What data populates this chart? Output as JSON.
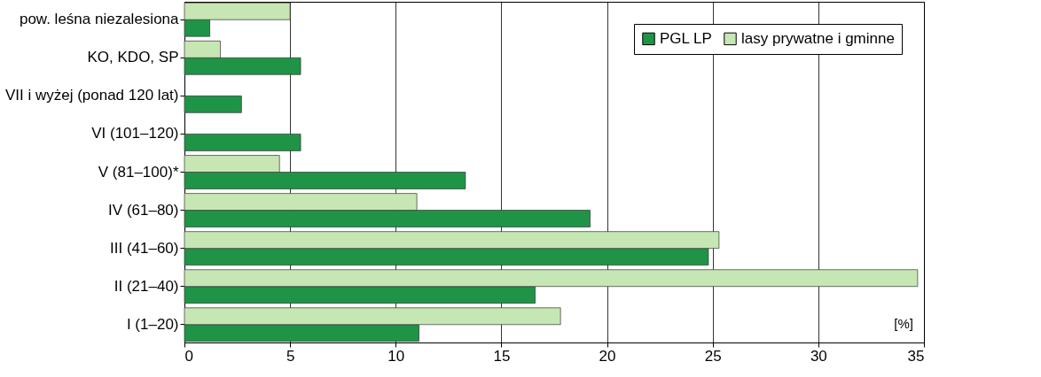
{
  "chart_data": {
    "type": "bar",
    "orientation": "horizontal",
    "categories": [
      "pow. leśna niezalesiona",
      "KO, KDO, SP",
      "VII i wyżej (ponad 120 lat)",
      "VI (101–120)",
      "V (81–100)*",
      "IV (61–80)",
      "III (41–60)",
      "II (21–40)",
      "I (1–20)"
    ],
    "series": [
      {
        "name": "PGL LP",
        "color": "#1f9447",
        "values": [
          1.2,
          5.5,
          2.7,
          5.5,
          13.3,
          19.2,
          24.8,
          16.6,
          11.1
        ]
      },
      {
        "name": "lasy prywatne i gminne",
        "color": "#c6e6b3",
        "values": [
          5.0,
          1.7,
          null,
          null,
          4.5,
          11.0,
          25.3,
          34.7,
          17.8
        ]
      }
    ],
    "xlim": [
      0,
      35
    ],
    "xticks": [
      0,
      5,
      10,
      15,
      20,
      25,
      30,
      35
    ],
    "grid": "x",
    "legend": "top right",
    "annotations": [
      "[%]"
    ]
  }
}
